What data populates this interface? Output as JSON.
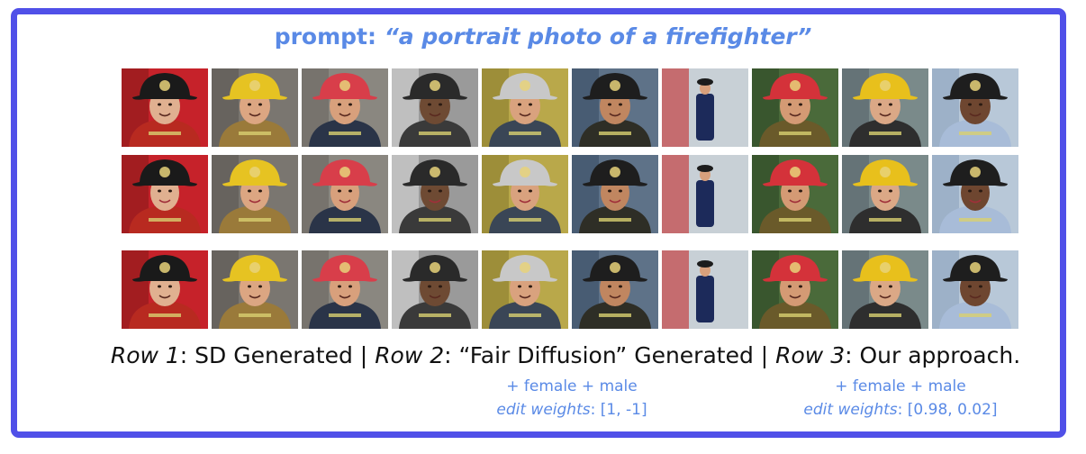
{
  "prompt": {
    "label": "prompt: ",
    "text": "“a portrait photo of a firefighter”"
  },
  "caption": {
    "row1_label": "Row 1",
    "row1_text": ": SD Generated | ",
    "row2_label": "Row 2",
    "row2_text": ": “Fair Diffusion” Generated | ",
    "row3_label": "Row 3",
    "row3_text": ": Our approach."
  },
  "note_fair": {
    "attrs": "+ female + male",
    "weights_label": "edit weights",
    "weights_value": ": [1, -1]"
  },
  "note_ours": {
    "attrs": "+ female + male",
    "weights_label": "edit weights",
    "weights_value": ": [0.98, 0.02]"
  },
  "colors": {
    "border": "#5050e8",
    "accent_text": "#5a8ae6"
  },
  "columns": [
    {
      "bg": "#c6222a",
      "accent": "#8a1a1a",
      "helmet": "#1a1a1a",
      "jacket": "#b82a20",
      "skin": "#e0b090"
    },
    {
      "bg": "#7a7670",
      "accent": "#5a5652",
      "helmet": "#e6c322",
      "jacket": "#9a7a3a",
      "skin": "#dca682"
    },
    {
      "bg": "#8a8780",
      "accent": "#6a6660",
      "helmet": "#d83e4a",
      "jacket": "#2a3448",
      "skin": "#d8a07c"
    },
    {
      "bg": "#9a9a9a",
      "accent": "#d8d8d8",
      "helmet": "#2a2a2a",
      "jacket": "#3a3a3a",
      "skin": "#6e4a33"
    },
    {
      "bg": "#b9a84a",
      "accent": "#8a7d2e",
      "helmet": "#c8c8c8",
      "jacket": "#3a4656",
      "skin": "#d9a27e"
    },
    {
      "bg": "#5e7288",
      "accent": "#3a4e66",
      "helmet": "#1e1e1e",
      "jacket": "#2e2e26",
      "skin": "#c08660"
    },
    {
      "bg": "#c8d0d6",
      "accent": "#c32a2a",
      "helmet": "#1c1c1c",
      "jacket": "#1c2a5a",
      "skin": "#d8a07c"
    },
    {
      "bg": "#4a6a3a",
      "accent": "#2e4a26",
      "helmet": "#d4323a",
      "jacket": "#6a5a2a",
      "skin": "#d49a74"
    },
    {
      "bg": "#7a8a8a",
      "accent": "#56646a",
      "helmet": "#e8c01c",
      "jacket": "#2e2e2e",
      "skin": "#dba886"
    },
    {
      "bg": "#b8c8d8",
      "accent": "#8aa2be",
      "helmet": "#1e1e1e",
      "jacket": "#a8bcd8",
      "skin": "#6e4630"
    }
  ]
}
